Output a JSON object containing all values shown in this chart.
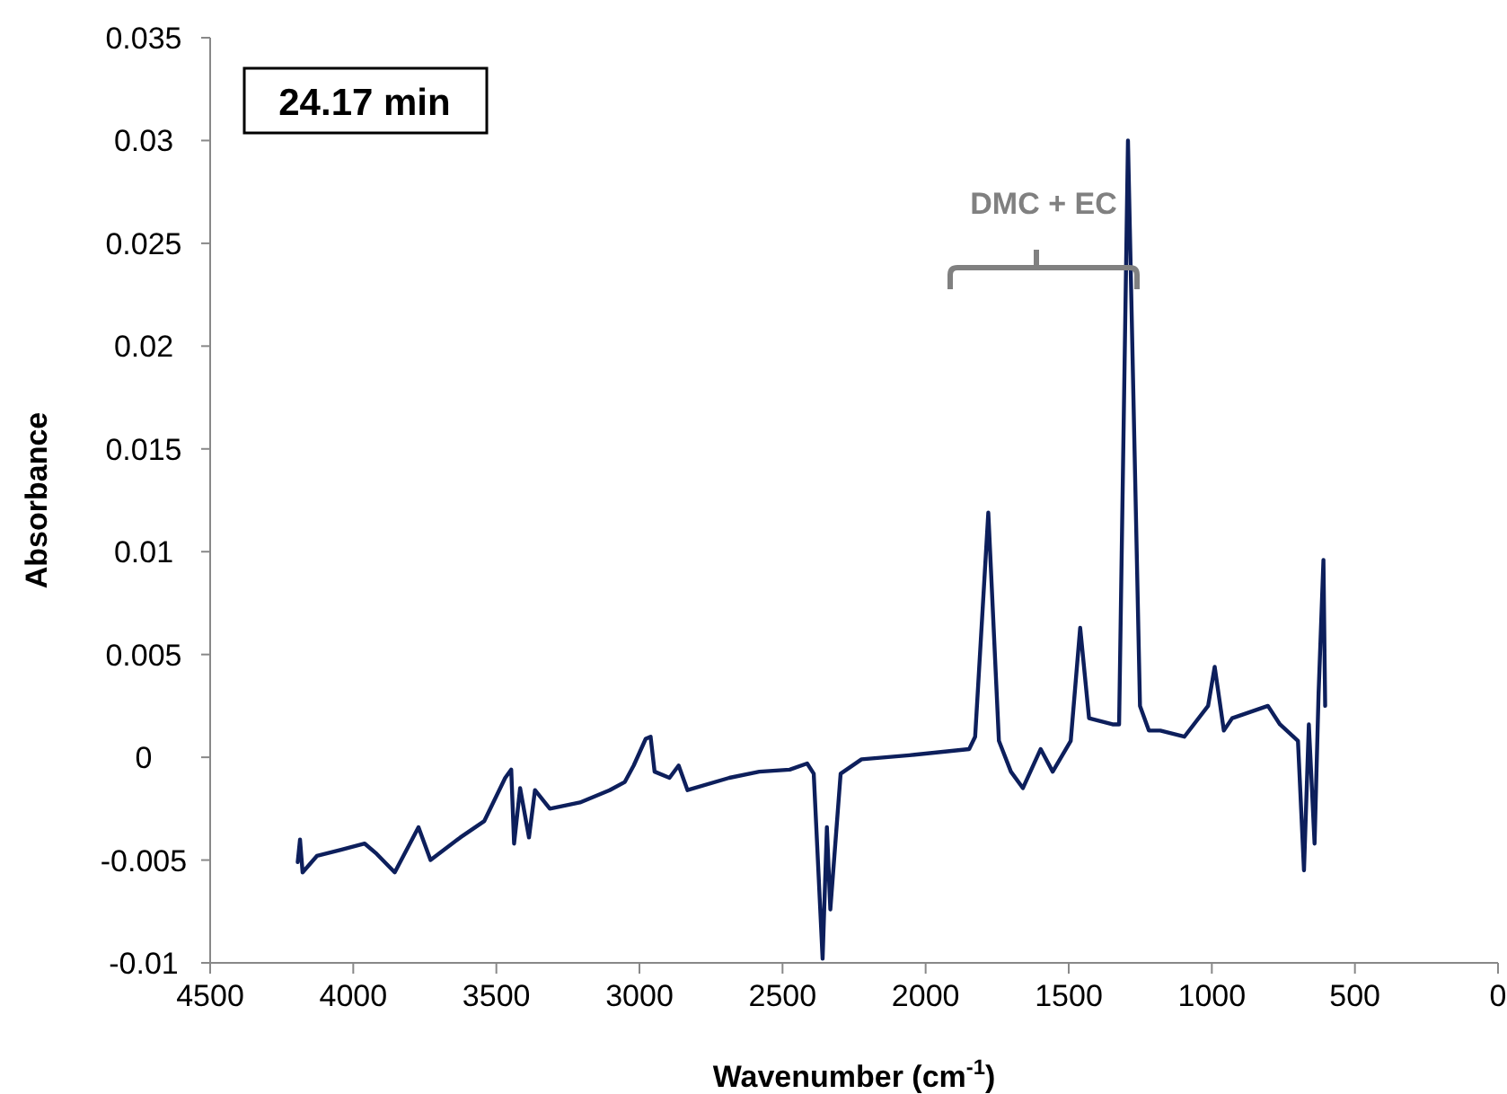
{
  "chart_data": {
    "type": "line",
    "title": "24.17 min",
    "xlabel": "Wavenumber (cm$^{-1}$)",
    "ylabel": "Absorbance",
    "xlim": [
      4500,
      0
    ],
    "xticks": [
      4500,
      4000,
      3500,
      3000,
      2500,
      2000,
      1500,
      1000,
      500,
      0
    ],
    "ylim": [
      -0.01,
      0.035
    ],
    "yticks": [
      -0.01,
      -0.005,
      0,
      0.005,
      0.01,
      0.015,
      0.02,
      0.025,
      0.03,
      0.035
    ],
    "grid": false,
    "annotations": [
      "DMC + EC"
    ],
    "series": [
      {
        "color": "#0d1f5c",
        "x": [
          4194,
          4186,
          4177,
          4127,
          4043,
          3960,
          3918,
          3855,
          3772,
          3730,
          3626,
          3542,
          3469,
          3448,
          3438,
          3417,
          3386,
          3365,
          3313,
          3208,
          3104,
          3051,
          3020,
          2978,
          2961,
          2947,
          2895,
          2863,
          2832,
          2686,
          2581,
          2475,
          2414,
          2391,
          2360,
          2345,
          2333,
          2297,
          2224,
          2057,
          1848,
          1827,
          1781,
          1744,
          1702,
          1660,
          1598,
          1556,
          1493,
          1460,
          1429,
          1347,
          1324,
          1293,
          1251,
          1220,
          1180,
          1096,
          1013,
          990,
          958,
          929,
          804,
          762,
          699,
          678,
          661,
          641,
          627,
          610,
          604
        ],
        "values": [
          -0.0051,
          -0.004,
          -0.0056,
          -0.0048,
          -0.0045,
          -0.0042,
          -0.0047,
          -0.0056,
          -0.0034,
          -0.005,
          -0.0039,
          -0.0031,
          -0.001,
          -0.0006,
          -0.0042,
          -0.0015,
          -0.0039,
          -0.0016,
          -0.0025,
          -0.0022,
          -0.0016,
          -0.0012,
          -0.0004,
          0.0009,
          0.001,
          -0.0007,
          -0.001,
          -0.0004,
          -0.0016,
          -0.001,
          -0.0007,
          -0.0006,
          -0.0003,
          -0.0008,
          -0.0098,
          -0.0034,
          -0.0074,
          -0.0008,
          -0.0001,
          0.0001,
          0.0004,
          0.001,
          0.0119,
          0.0008,
          -0.0007,
          -0.0015,
          0.0004,
          -0.0007,
          0.0008,
          0.0063,
          0.0019,
          0.0016,
          0.0016,
          0.03,
          0.0025,
          0.0013,
          0.0013,
          0.001,
          0.0025,
          0.0044,
          0.0013,
          0.0019,
          0.0025,
          0.0016,
          0.0008,
          -0.0055,
          0.0016,
          -0.0042,
          0.0031,
          0.0096,
          0.0025
        ]
      }
    ]
  }
}
